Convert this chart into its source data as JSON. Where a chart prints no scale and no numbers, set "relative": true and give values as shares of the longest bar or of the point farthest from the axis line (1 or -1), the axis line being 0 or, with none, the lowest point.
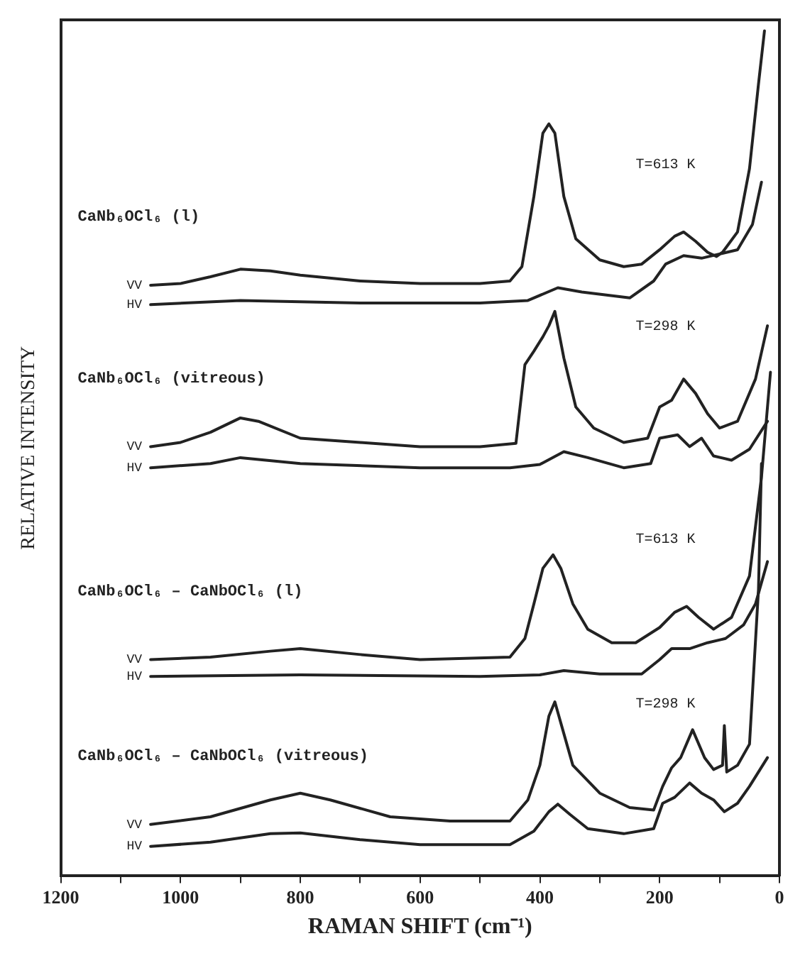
{
  "chart_data": {
    "type": "line",
    "relative": true,
    "xlabel": "RAMAN SHIFT (cm⁻¹)",
    "ylabel": "RELATIVE INTENSITY",
    "xlim": [
      1200,
      0
    ],
    "xticks": [
      1200,
      {
        "value": 1100,
        "label": null
      },
      1000,
      {
        "value": 900,
        "label": null
      },
      800,
      {
        "value": 700,
        "label": null
      },
      600,
      {
        "value": 500,
        "label": null
      },
      400,
      {
        "value": 300,
        "label": null
      },
      200,
      {
        "value": 100,
        "label": null
      },
      0
    ],
    "grid": false,
    "legend": false,
    "marker": "none",
    "line_style": "solid",
    "annotations": [
      "CaNb₆OCl₆ (l)",
      "T=613 K",
      "CaNb₆OCl₆ (vitreous)",
      "T=298 K",
      "CaNb₆OCl₆ – CaNbOCl₆ (l)",
      "T=613 K",
      "CaNb₆OCl₆ – CaNbOCl₆ (vitreous)",
      "T=298 K"
    ],
    "series": [
      {
        "name": "VV",
        "color": "#222222",
        "x": [
          1050,
          1000,
          950,
          900,
          850,
          800,
          700,
          600,
          500,
          450,
          430,
          410,
          395,
          385,
          375,
          360,
          340,
          300,
          260,
          230,
          200,
          175,
          160,
          140,
          120,
          105,
          95,
          70,
          50,
          35,
          25
        ],
        "values": [
          0.699,
          0.701,
          0.709,
          0.718,
          0.716,
          0.711,
          0.704,
          0.701,
          0.701,
          0.704,
          0.721,
          0.804,
          0.879,
          0.89,
          0.879,
          0.804,
          0.754,
          0.729,
          0.721,
          0.724,
          0.741,
          0.757,
          0.762,
          0.751,
          0.738,
          0.733,
          0.738,
          0.762,
          0.837,
          0.937,
          1.0
        ]
      },
      {
        "name": "HV",
        "color": "#222222",
        "x": [
          1050,
          900,
          700,
          500,
          420,
          370,
          330,
          250,
          210,
          190,
          160,
          130,
          100,
          70,
          45,
          30
        ],
        "values": [
          0.676,
          0.681,
          0.678,
          0.678,
          0.681,
          0.696,
          0.691,
          0.684,
          0.704,
          0.724,
          0.734,
          0.731,
          0.736,
          0.741,
          0.771,
          0.821
        ]
      },
      {
        "name": "VV",
        "color": "#222222",
        "x": [
          1050,
          1000,
          950,
          900,
          870,
          800,
          700,
          600,
          500,
          440,
          425,
          410,
          395,
          385,
          375,
          360,
          340,
          310,
          260,
          220,
          200,
          180,
          160,
          140,
          120,
          100,
          70,
          40,
          20
        ],
        "values": [
          0.508,
          0.513,
          0.525,
          0.542,
          0.538,
          0.518,
          0.513,
          0.508,
          0.508,
          0.512,
          0.605,
          0.621,
          0.638,
          0.651,
          0.668,
          0.613,
          0.555,
          0.53,
          0.513,
          0.518,
          0.555,
          0.563,
          0.588,
          0.571,
          0.547,
          0.53,
          0.538,
          0.588,
          0.651
        ]
      },
      {
        "name": "HV",
        "color": "#222222",
        "x": [
          1050,
          950,
          900,
          800,
          600,
          450,
          400,
          360,
          320,
          260,
          215,
          200,
          170,
          150,
          130,
          110,
          80,
          50,
          20
        ],
        "values": [
          0.483,
          0.488,
          0.495,
          0.488,
          0.483,
          0.483,
          0.487,
          0.502,
          0.495,
          0.483,
          0.488,
          0.518,
          0.522,
          0.508,
          0.518,
          0.497,
          0.492,
          0.505,
          0.538
        ]
      },
      {
        "name": "VV",
        "color": "#222222",
        "x": [
          1050,
          950,
          850,
          800,
          700,
          600,
          450,
          425,
          410,
          395,
          378,
          365,
          345,
          320,
          280,
          240,
          200,
          175,
          155,
          135,
          110,
          80,
          50,
          30,
          15
        ],
        "values": [
          0.256,
          0.259,
          0.266,
          0.269,
          0.262,
          0.256,
          0.259,
          0.281,
          0.322,
          0.364,
          0.38,
          0.364,
          0.322,
          0.292,
          0.276,
          0.276,
          0.294,
          0.312,
          0.319,
          0.306,
          0.292,
          0.306,
          0.355,
          0.472,
          0.596
        ]
      },
      {
        "name": "HV",
        "color": "#222222",
        "x": [
          1050,
          800,
          500,
          400,
          360,
          300,
          230,
          200,
          180,
          150,
          120,
          90,
          60,
          40,
          20
        ],
        "values": [
          0.236,
          0.238,
          0.236,
          0.238,
          0.243,
          0.239,
          0.239,
          0.256,
          0.269,
          0.269,
          0.276,
          0.281,
          0.297,
          0.322,
          0.372
        ]
      },
      {
        "name": "VV",
        "color": "#222222",
        "x": [
          1050,
          950,
          850,
          800,
          750,
          650,
          550,
          450,
          420,
          400,
          385,
          375,
          365,
          345,
          300,
          250,
          210,
          195,
          180,
          165,
          145,
          125,
          110,
          95,
          92,
          88,
          70,
          50,
          35,
          30
        ],
        "values": [
          0.061,
          0.07,
          0.09,
          0.098,
          0.09,
          0.07,
          0.065,
          0.065,
          0.09,
          0.131,
          0.189,
          0.206,
          0.181,
          0.131,
          0.098,
          0.081,
          0.078,
          0.106,
          0.128,
          0.14,
          0.173,
          0.14,
          0.126,
          0.131,
          0.178,
          0.123,
          0.131,
          0.156,
          0.339,
          0.488
        ]
      },
      {
        "name": "HV",
        "color": "#222222",
        "x": [
          1050,
          950,
          850,
          800,
          700,
          600,
          450,
          410,
          385,
          370,
          350,
          320,
          260,
          210,
          195,
          175,
          150,
          130,
          110,
          92,
          70,
          50,
          20
        ],
        "values": [
          0.035,
          0.04,
          0.05,
          0.051,
          0.043,
          0.037,
          0.037,
          0.053,
          0.076,
          0.085,
          0.073,
          0.056,
          0.05,
          0.056,
          0.086,
          0.093,
          0.11,
          0.098,
          0.09,
          0.076,
          0.086,
          0.106,
          0.14
        ]
      }
    ]
  }
}
